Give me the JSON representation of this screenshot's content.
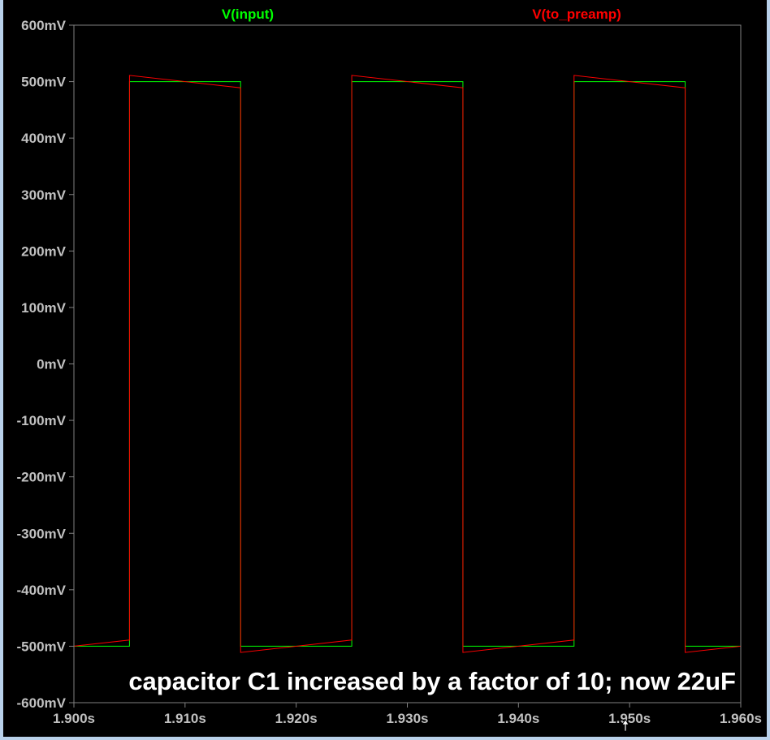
{
  "colors": {
    "background": "#000000",
    "frame": "#b9d1ea",
    "plot_border": "#808080",
    "tick_text": "#c0c0c0",
    "annotation": "#ffffff"
  },
  "chart_data": {
    "type": "line",
    "x_ticks": [
      "1.900s",
      "1.910s",
      "1.920s",
      "1.930s",
      "1.940s",
      "1.950s",
      "1.960s"
    ],
    "y_ticks": [
      "600mV",
      "500mV",
      "400mV",
      "300mV",
      "200mV",
      "100mV",
      "0mV",
      "-100mV",
      "-200mV",
      "-300mV",
      "-400mV",
      "-500mV",
      "-600mV"
    ],
    "xlim": [
      1.9,
      1.96
    ],
    "ylim": [
      -600,
      600
    ],
    "x_unit": "s",
    "y_unit": "mV",
    "grid": false,
    "legend_placement": "top",
    "annotation": "capacitor C1 increased by a factor of 10; now 22uF",
    "series": [
      {
        "name": "V(input)",
        "color": "#00ff00",
        "x": [
          1.9,
          1.905,
          1.905,
          1.915,
          1.915,
          1.925,
          1.925,
          1.935,
          1.935,
          1.945,
          1.945,
          1.955,
          1.955,
          1.96
        ],
        "y": [
          -500,
          -500,
          500,
          500,
          -500,
          -500,
          500,
          500,
          -500,
          -500,
          500,
          500,
          -500,
          -500
        ]
      },
      {
        "name": "V(to_preamp)",
        "color": "#ff0000",
        "x": [
          1.9,
          1.905,
          1.905,
          1.915,
          1.915,
          1.925,
          1.925,
          1.935,
          1.935,
          1.945,
          1.945,
          1.955,
          1.955,
          1.96
        ],
        "y": [
          -500,
          -489,
          511,
          489,
          -511,
          -489,
          511,
          489,
          -511,
          -489,
          511,
          489,
          -511,
          -500
        ]
      }
    ]
  }
}
